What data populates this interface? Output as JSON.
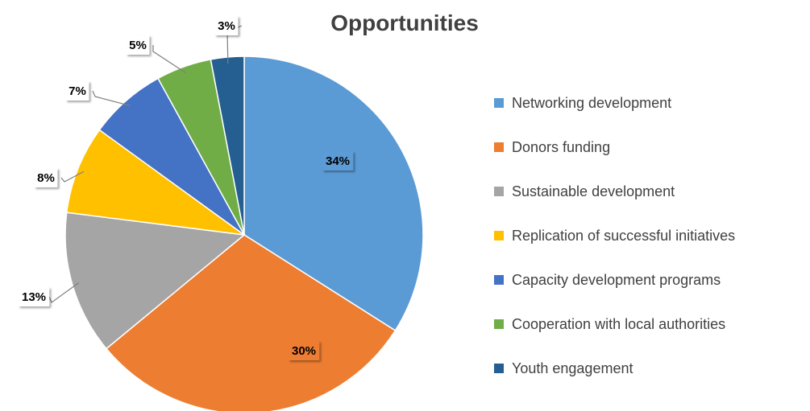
{
  "chart_data": {
    "type": "pie",
    "title": "Opportunities",
    "categories": [
      "Networking development",
      "Donors funding",
      "Sustainable development",
      "Replication of successful initiatives",
      "Capacity development programs",
      "Cooperation with local authorities",
      "Youth engagement"
    ],
    "values": [
      34,
      30,
      13,
      8,
      7,
      5,
      3
    ],
    "data_labels": [
      "34%",
      "30%",
      "13%",
      "8%",
      "7%",
      "5%",
      "3%"
    ],
    "colors": [
      "#5B9BD5",
      "#ED7D31",
      "#A5A5A5",
      "#FFC000",
      "#4472C4",
      "#70AD47",
      "#255E91"
    ],
    "legend_position": "right",
    "grid": false
  }
}
